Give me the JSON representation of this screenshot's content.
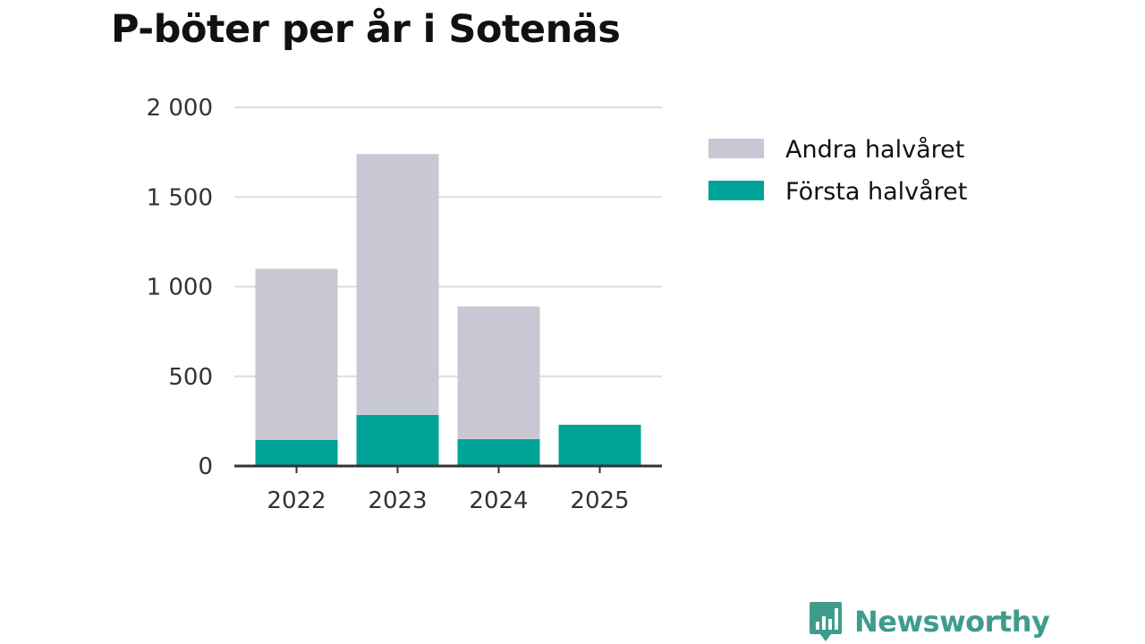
{
  "chart_data": {
    "type": "bar",
    "stacked": true,
    "title": "P-böter per år i Sotenäs",
    "categories": [
      "2022",
      "2023",
      "2024",
      "2025"
    ],
    "series": [
      {
        "name": "Första halvåret",
        "color": "#00a398",
        "values": [
          145,
          285,
          150,
          230
        ]
      },
      {
        "name": "Andra halvåret",
        "color": "#c8c8d4",
        "values": [
          955,
          1455,
          740,
          0
        ]
      }
    ],
    "ylim": [
      0,
      2000
    ],
    "yticks": [
      0,
      500,
      1000,
      1500,
      2000
    ],
    "ytick_labels": [
      "0",
      "500",
      "1 000",
      "1 500",
      "2 000"
    ],
    "grid": true,
    "legend_position": "right",
    "legend_order": [
      "Andra halvåret",
      "Första halvåret"
    ]
  },
  "branding": {
    "name": "Newsworthy",
    "icon": "bar-chart-logo-icon",
    "color": "#3f9c8c"
  }
}
